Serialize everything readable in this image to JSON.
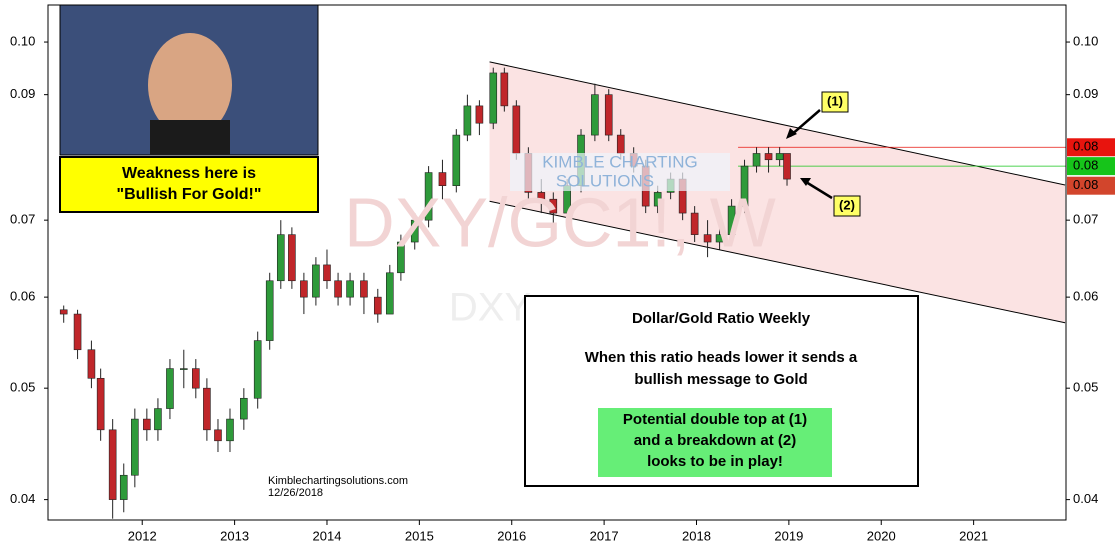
{
  "chart_data": {
    "type": "candlestick",
    "log_scale": true,
    "grid": false,
    "watermark": "DXY/GC1!, W",
    "watermark_small": "DXY",
    "logo": [
      "KIMBLE CHARTING",
      "SOLUTIONS"
    ],
    "xlim": [
      2010.98,
      2022.0
    ],
    "xticks": [
      2012,
      2013,
      2014,
      2015,
      2016,
      2017,
      2018,
      2019,
      2020,
      2021
    ],
    "ylim": [
      0.0384,
      0.1077
    ],
    "yticks": [
      {
        "value": 0.1,
        "label": "0.10"
      },
      0.09,
      0.07,
      0.06,
      0.05,
      0.04
    ],
    "up_color": "#2e9a3a",
    "down_color": "#c0262a",
    "series": [
      {
        "name": "DXY/GC1!",
        "x": [
          2011.15,
          2011.3,
          2011.45,
          2011.55,
          2011.68,
          2011.8,
          2011.92,
          2012.05,
          2012.17,
          2012.3,
          2012.45,
          2012.58,
          2012.7,
          2012.82,
          2012.95,
          2013.1,
          2013.25,
          2013.38,
          2013.5,
          2013.62,
          2013.75,
          2013.88,
          2014.0,
          2014.12,
          2014.25,
          2014.4,
          2014.55,
          2014.68,
          2014.8,
          2014.95,
          2015.1,
          2015.25,
          2015.4,
          2015.52,
          2015.65,
          2015.8,
          2015.92,
          2016.05,
          2016.18,
          2016.32,
          2016.45,
          2016.6,
          2016.75,
          2016.9,
          2017.05,
          2017.18,
          2017.32,
          2017.45,
          2017.58,
          2017.72,
          2017.85,
          2017.98,
          2018.12,
          2018.25,
          2018.38,
          2018.52,
          2018.65,
          2018.78,
          2018.9,
          2018.98
        ],
        "open": [
          0.0585,
          0.058,
          0.054,
          0.051,
          0.046,
          0.04,
          0.042,
          0.047,
          0.046,
          0.048,
          0.052,
          0.052,
          0.05,
          0.046,
          0.045,
          0.047,
          0.049,
          0.055,
          0.062,
          0.068,
          0.062,
          0.06,
          0.064,
          0.062,
          0.06,
          0.062,
          0.06,
          0.058,
          0.063,
          0.067,
          0.07,
          0.077,
          0.075,
          0.083,
          0.088,
          0.085,
          0.094,
          0.088,
          0.08,
          0.074,
          0.073,
          0.071,
          0.075,
          0.083,
          0.09,
          0.083,
          0.08,
          0.078,
          0.072,
          0.074,
          0.076,
          0.071,
          0.068,
          0.067,
          0.068,
          0.072,
          0.078,
          0.08,
          0.079,
          0.08
        ],
        "high": [
          0.059,
          0.0585,
          0.055,
          0.052,
          0.047,
          0.043,
          0.048,
          0.048,
          0.049,
          0.053,
          0.054,
          0.053,
          0.051,
          0.047,
          0.048,
          0.05,
          0.056,
          0.063,
          0.07,
          0.069,
          0.063,
          0.065,
          0.066,
          0.063,
          0.063,
          0.063,
          0.061,
          0.064,
          0.068,
          0.071,
          0.078,
          0.079,
          0.084,
          0.09,
          0.089,
          0.095,
          0.095,
          0.089,
          0.081,
          0.076,
          0.074,
          0.076,
          0.084,
          0.092,
          0.091,
          0.084,
          0.081,
          0.079,
          0.075,
          0.077,
          0.077,
          0.072,
          0.07,
          0.069,
          0.073,
          0.079,
          0.081,
          0.081,
          0.081,
          0.08
        ],
        "low": [
          0.057,
          0.053,
          0.05,
          0.045,
          0.0385,
          0.039,
          0.041,
          0.045,
          0.045,
          0.047,
          0.05,
          0.049,
          0.045,
          0.044,
          0.044,
          0.046,
          0.048,
          0.054,
          0.061,
          0.061,
          0.058,
          0.059,
          0.061,
          0.059,
          0.059,
          0.058,
          0.057,
          0.058,
          0.062,
          0.066,
          0.069,
          0.073,
          0.074,
          0.082,
          0.083,
          0.084,
          0.087,
          0.079,
          0.073,
          0.071,
          0.069,
          0.07,
          0.074,
          0.082,
          0.082,
          0.079,
          0.077,
          0.071,
          0.071,
          0.073,
          0.07,
          0.067,
          0.065,
          0.066,
          0.067,
          0.071,
          0.077,
          0.077,
          0.078,
          0.075
        ],
        "close": [
          0.058,
          0.054,
          0.051,
          0.046,
          0.04,
          0.042,
          0.047,
          0.046,
          0.048,
          0.052,
          0.052,
          0.05,
          0.046,
          0.045,
          0.047,
          0.049,
          0.055,
          0.062,
          0.068,
          0.062,
          0.06,
          0.064,
          0.062,
          0.06,
          0.062,
          0.06,
          0.058,
          0.063,
          0.067,
          0.07,
          0.077,
          0.075,
          0.083,
          0.088,
          0.085,
          0.094,
          0.088,
          0.08,
          0.074,
          0.073,
          0.071,
          0.075,
          0.083,
          0.09,
          0.083,
          0.08,
          0.078,
          0.072,
          0.074,
          0.076,
          0.071,
          0.068,
          0.067,
          0.068,
          0.072,
          0.078,
          0.08,
          0.079,
          0.08,
          0.076
        ]
      }
    ],
    "channel": [
      {
        "x": [
          2015.76,
          2021.99
        ],
        "y": [
          0.0961,
          0.0751
        ]
      },
      {
        "x": [
          2015.76,
          2021.99
        ],
        "y": [
          0.0727,
          0.057
        ]
      }
    ],
    "channel_color": "#fbe3e3",
    "price_tags": [
      {
        "value": 0.081,
        "label": "0.08",
        "color": "#e8140e",
        "line_from": 2018.45
      },
      {
        "value": 0.078,
        "label": "0.08",
        "color": "#16c41a",
        "line_from": 2018.45
      },
      {
        "value": 0.075,
        "label": "0.08",
        "color": "#d2452c"
      }
    ],
    "callouts": [
      "(1)",
      "(2)"
    ],
    "photo_caption": [
      "Weakness here is",
      "\"Bullish For Gold!\""
    ],
    "info_box": {
      "title": "Dollar/Gold Ratio Weekly",
      "lines": [
        "When this ratio heads lower it sends a",
        "bullish message to Gold"
      ],
      "highlight": [
        "Potential double top at (1)",
        "and a breakdown at (2)",
        "looks to be in play!"
      ]
    },
    "credit": [
      "Kimblechartingsolutions.com",
      "12/26/2018"
    ]
  }
}
